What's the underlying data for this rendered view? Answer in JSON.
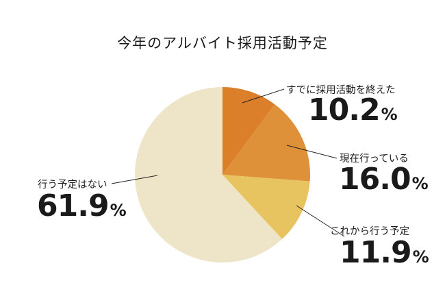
{
  "chart_data": {
    "type": "pie",
    "title": "今年のアルバイト採用活動予定",
    "slices": [
      {
        "label": "すでに採用活動を終えた",
        "value": 10.2,
        "display": "10.2",
        "unit": "%",
        "color": "#DB7F2A"
      },
      {
        "label": "現在行っている",
        "value": 16.0,
        "display": "16.0",
        "unit": "%",
        "color": "#DE9138"
      },
      {
        "label": "これから行う予定",
        "value": 11.9,
        "display": "11.9",
        "unit": "%",
        "color": "#E8C461"
      },
      {
        "label": "行う予定はない",
        "value": 61.9,
        "display": "61.9",
        "unit": "%",
        "color": "#EEE4C8"
      }
    ],
    "start": "12 o'clock",
    "direction": "clockwise",
    "legend": "none"
  }
}
